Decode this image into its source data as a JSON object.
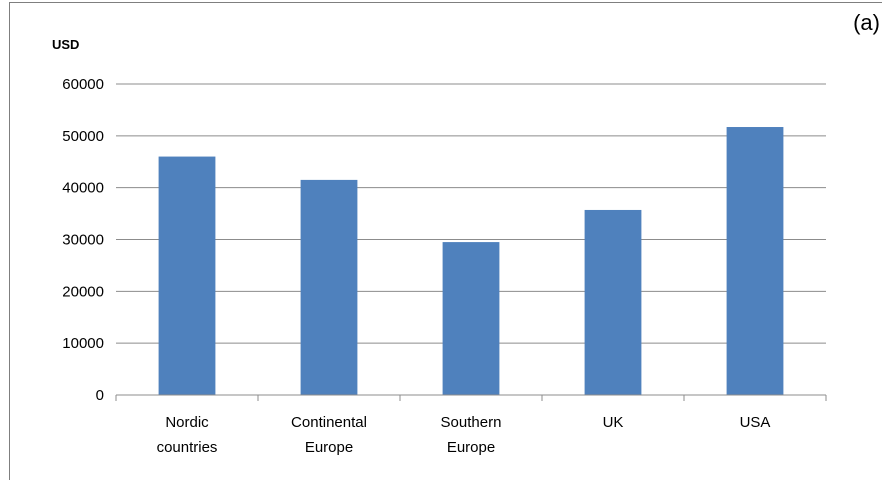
{
  "panel_label": "(a)",
  "chart_data": {
    "type": "bar",
    "title": "",
    "unit_label": "USD",
    "xlabel": "",
    "ylabel": "USD",
    "categories": [
      [
        "Nordic",
        "countries"
      ],
      [
        "Continental",
        "Europe"
      ],
      [
        "Southern",
        "Europe"
      ],
      [
        "UK"
      ],
      [
        "USA"
      ]
    ],
    "values": [
      46000,
      41500,
      29500,
      35700,
      51700
    ],
    "ylim": [
      0,
      60000
    ],
    "yticks": [
      0,
      10000,
      20000,
      30000,
      40000,
      50000,
      60000
    ],
    "grid": true,
    "bar_color": "#4f81bd"
  }
}
